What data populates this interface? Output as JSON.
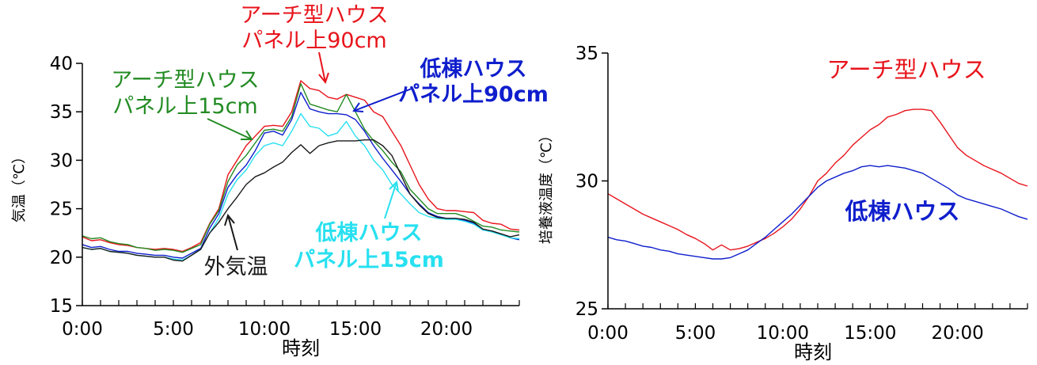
{
  "chart_data": [
    {
      "type": "line",
      "xlabel": "時刻",
      "ylabel": "気温（℃）",
      "ylim": [
        15,
        40
      ],
      "yticks": [
        15,
        20,
        25,
        30,
        35,
        40
      ],
      "xlim": [
        0,
        24
      ],
      "xticks": [
        "0:00",
        "5:00",
        "10:00",
        "15:00",
        "20:00"
      ],
      "x": [
        0,
        0.5,
        1,
        1.5,
        2,
        2.5,
        3,
        3.5,
        4,
        4.5,
        5,
        5.5,
        6,
        6.5,
        7,
        7.5,
        8,
        8.5,
        9,
        9.5,
        10,
        10.5,
        11,
        11.5,
        12,
        12.5,
        13,
        13.5,
        14,
        14.5,
        15,
        15.5,
        16,
        16.5,
        17,
        17.5,
        18,
        18.5,
        19,
        19.5,
        20,
        20.5,
        21,
        21.5,
        22,
        22.5,
        23,
        23.5,
        24
      ],
      "series": [
        {
          "name": "アーチ型ハウス パネル上90cm",
          "color": "#e8141c",
          "values": [
            22.1,
            21.7,
            21.8,
            21.5,
            21.3,
            21.2,
            21.0,
            20.9,
            20.8,
            20.9,
            20.8,
            20.6,
            21.0,
            21.5,
            23.5,
            25.0,
            28.5,
            30.0,
            31.5,
            32.5,
            33.5,
            33.6,
            33.5,
            35.0,
            38.2,
            37.4,
            37.2,
            36.5,
            36.3,
            36.8,
            36.5,
            36.2,
            35.0,
            34.5,
            33.0,
            31.5,
            29.5,
            27.5,
            26.0,
            25.0,
            24.8,
            24.8,
            24.7,
            24.6,
            23.8,
            23.5,
            23.4,
            22.9,
            22.8
          ]
        },
        {
          "name": "アーチ型ハウス パネル上15cm",
          "color": "#238b23",
          "values": [
            22.2,
            21.9,
            22.0,
            21.6,
            21.4,
            21.3,
            21.0,
            20.9,
            20.7,
            20.8,
            20.7,
            20.5,
            20.9,
            21.3,
            23.4,
            24.8,
            27.8,
            29.5,
            30.5,
            31.8,
            33.1,
            33.2,
            33.0,
            34.5,
            37.9,
            35.8,
            35.5,
            35.2,
            35.0,
            36.8,
            35.0,
            33.2,
            32.0,
            31.0,
            29.8,
            28.8,
            27.0,
            26.0,
            25.0,
            24.5,
            24.5,
            24.5,
            24.2,
            23.7,
            23.2,
            23.1,
            22.8,
            22.7,
            22.6
          ]
        },
        {
          "name": "低棟ハウス パネル上90cm",
          "color": "#0f1ecc",
          "values": [
            21.3,
            21.0,
            21.1,
            20.8,
            20.6,
            20.6,
            20.4,
            20.3,
            20.2,
            20.2,
            20.0,
            19.9,
            20.4,
            20.9,
            23.0,
            24.5,
            27.2,
            28.5,
            29.5,
            31.0,
            32.8,
            33.0,
            32.6,
            34.2,
            37.0,
            35.3,
            35.0,
            34.8,
            34.8,
            34.7,
            34.2,
            33.0,
            31.5,
            30.2,
            29.0,
            27.8,
            26.5,
            25.5,
            24.6,
            24.2,
            24.0,
            24.0,
            23.8,
            23.5,
            22.8,
            22.7,
            22.4,
            22.0,
            21.8
          ]
        },
        {
          "name": "低棟ハウス パネル上15cm",
          "color": "#28e0f0",
          "values": [
            21.0,
            20.8,
            20.9,
            20.6,
            20.5,
            20.4,
            20.2,
            20.1,
            20.0,
            20.0,
            19.8,
            19.7,
            20.2,
            20.8,
            22.5,
            24.0,
            26.5,
            28.0,
            29.0,
            30.5,
            31.5,
            31.8,
            31.5,
            33.0,
            34.8,
            33.5,
            33.3,
            32.5,
            32.8,
            34.0,
            32.5,
            31.5,
            30.0,
            29.0,
            27.5,
            26.5,
            25.5,
            24.6,
            24.2,
            24.0,
            23.9,
            23.9,
            23.7,
            23.4,
            22.8,
            22.6,
            22.3,
            22.0,
            21.9
          ]
        },
        {
          "name": "外気温",
          "color": "#1a1a1a",
          "values": [
            21.0,
            20.8,
            20.9,
            20.6,
            20.5,
            20.4,
            20.2,
            20.1,
            20.0,
            20.0,
            19.7,
            19.6,
            20.2,
            20.8,
            22.5,
            23.6,
            25.0,
            26.2,
            27.5,
            28.3,
            28.7,
            29.3,
            29.8,
            30.8,
            31.6,
            30.7,
            31.5,
            31.8,
            32.0,
            32.0,
            32.0,
            32.1,
            32.1,
            31.5,
            30.5,
            28.5,
            26.5,
            25.4,
            24.5,
            24.1,
            24.0,
            24.0,
            23.9,
            23.6,
            22.9,
            22.7,
            22.4,
            22.1,
            22.3
          ]
        }
      ],
      "annotations": [
        {
          "line1": "アーチ型ハウス",
          "line2": "パネル上90cm",
          "color": "#e8141c"
        },
        {
          "line1": "アーチ型ハウス",
          "line2": "パネル上15cm",
          "color": "#238b23"
        },
        {
          "line1": "低棟ハウス",
          "line2": "パネル上90cm",
          "color": "#0f1ecc"
        },
        {
          "line1": "低棟ハウス",
          "line2": "パネル上15cm",
          "color": "#28e0f0"
        },
        {
          "line1": "外気温",
          "line2": "",
          "color": "#1a1a1a"
        }
      ]
    },
    {
      "type": "line",
      "xlabel": "時刻",
      "ylabel": "培養液温度（℃）",
      "ylim": [
        25,
        35
      ],
      "yticks": [
        25,
        30,
        35
      ],
      "xlim": [
        0,
        24
      ],
      "xticks": [
        "0:00",
        "5:00",
        "10:00",
        "15:00",
        "20:00"
      ],
      "x": [
        0,
        0.5,
        1,
        1.5,
        2,
        2.5,
        3,
        3.5,
        4,
        4.5,
        5,
        5.5,
        6,
        6.5,
        7,
        7.5,
        8,
        8.5,
        9,
        9.5,
        10,
        10.5,
        11,
        11.5,
        12,
        12.5,
        13,
        13.5,
        14,
        14.5,
        15,
        15.5,
        16,
        16.5,
        17,
        17.5,
        18,
        18.5,
        19,
        19.5,
        20,
        20.5,
        21,
        21.5,
        22,
        22.5,
        23,
        23.5,
        24
      ],
      "series": [
        {
          "name": "アーチ型ハウス",
          "color": "#e8141c",
          "values": [
            29.5,
            29.3,
            29.1,
            28.9,
            28.7,
            28.55,
            28.4,
            28.25,
            28.1,
            27.9,
            27.75,
            27.55,
            27.3,
            27.5,
            27.3,
            27.35,
            27.45,
            27.6,
            27.75,
            27.95,
            28.2,
            28.5,
            28.9,
            29.4,
            30.0,
            30.3,
            30.7,
            31.0,
            31.4,
            31.7,
            32.0,
            32.2,
            32.5,
            32.6,
            32.75,
            32.8,
            32.8,
            32.75,
            32.3,
            31.8,
            31.3,
            31.0,
            30.8,
            30.6,
            30.45,
            30.3,
            30.1,
            29.9,
            29.8
          ]
        },
        {
          "name": "低棟ハウス",
          "color": "#0f1ecc",
          "values": [
            27.8,
            27.7,
            27.65,
            27.55,
            27.45,
            27.4,
            27.3,
            27.25,
            27.15,
            27.1,
            27.05,
            27.0,
            26.95,
            26.95,
            27.0,
            27.15,
            27.3,
            27.55,
            27.8,
            28.1,
            28.4,
            28.7,
            29.05,
            29.4,
            29.75,
            30.0,
            30.15,
            30.3,
            30.4,
            30.55,
            30.6,
            30.55,
            30.6,
            30.55,
            30.5,
            30.4,
            30.3,
            30.1,
            29.9,
            29.7,
            29.45,
            29.3,
            29.2,
            29.1,
            29.0,
            28.9,
            28.75,
            28.6,
            28.5
          ]
        }
      ],
      "annotations": [
        {
          "line1": "アーチ型ハウス",
          "color": "#e8141c"
        },
        {
          "line1": "低棟ハウス",
          "color": "#0f1ecc"
        }
      ]
    }
  ]
}
